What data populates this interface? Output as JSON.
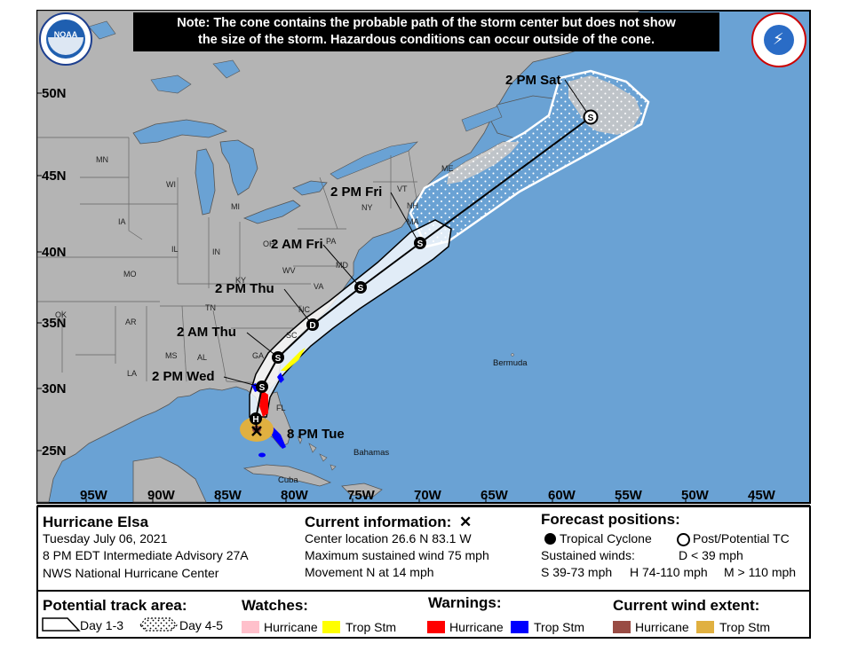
{
  "note": {
    "line1": "Note: The cone contains the probable path of the storm center but does not show",
    "line2": "the size of the storm. Hazardous conditions can occur outside of the cone."
  },
  "logos": {
    "left": "noaa-logo",
    "left_text": "NOAA",
    "right": "national-weather-service-logo",
    "right_text": "NATIONAL WEATHER SERVICE"
  },
  "axes": {
    "lat_labels": [
      "50N",
      "45N",
      "40N",
      "35N",
      "30N",
      "25N"
    ],
    "lon_labels": [
      "95W",
      "90W",
      "85W",
      "80W",
      "75W",
      "70W",
      "65W",
      "60W",
      "55W",
      "50W",
      "45W"
    ]
  },
  "forecast_points": [
    {
      "label": "8 PM Tue",
      "type": "current",
      "lat": 26.6,
      "lon": -83.1
    },
    {
      "label": "",
      "type": "H",
      "lat": 27.7,
      "lon": -83.1
    },
    {
      "label": "2 PM Wed",
      "type": "S",
      "lat": 30.0,
      "lon": -82.8
    },
    {
      "label": "2 AM Thu",
      "type": "S",
      "lat": 32.5,
      "lon": -81.3
    },
    {
      "label": "2 PM Thu",
      "type": "D",
      "lat": 35.0,
      "lon": -78.8
    },
    {
      "label": "2 AM Fri",
      "type": "S",
      "lat": 37.8,
      "lon": -75.2
    },
    {
      "label": "2 PM Fri",
      "type": "S",
      "lat": 41.0,
      "lon": -71.0
    },
    {
      "label": "2 PM Sat",
      "type": "S-post",
      "lat": 48.6,
      "lon": -58.4
    }
  ],
  "state_labels": [
    "MN",
    "WI",
    "MI",
    "ME",
    "VT",
    "NH",
    "NY",
    "MA",
    "PA",
    "IA",
    "IL",
    "IN",
    "OH",
    "MO",
    "KY",
    "WV",
    "VA",
    "MD",
    "OK",
    "AR",
    "TN",
    "NC",
    "SC",
    "MS",
    "AL",
    "GA",
    "LA",
    "FL"
  ],
  "places": {
    "bermuda": "Bermuda",
    "bahamas": "Bahamas",
    "cuba": "Cuba"
  },
  "legend": {
    "storm_name": "Hurricane Elsa",
    "date": "Tuesday July 06, 2021",
    "advisory": "8 PM EDT Intermediate Advisory 27A",
    "center": "NWS National Hurricane Center",
    "current_title": "Current information:",
    "current_symbol": "✕",
    "center_location": "Center location 26.6 N 83.1 W",
    "max_wind": "Maximum sustained wind 75 mph",
    "movement": "Movement N at 14 mph",
    "forecast_title": "Forecast positions:",
    "tropical_cyclone": "Tropical Cyclone",
    "post_tc": "Post/Potential TC",
    "sustained_winds": "Sustained winds:",
    "d_def": "D < 39 mph",
    "s_def": "S 39-73 mph",
    "h_def": "H 74-110 mph",
    "m_def": "M > 110 mph",
    "track_title": "Potential track area:",
    "day13": "Day 1-3",
    "day45": "Day 4-5",
    "watches_title": "Watches:",
    "warnings_title": "Warnings:",
    "wind_title": "Current wind extent:",
    "hurricane": "Hurricane",
    "trop_stm": "Trop Stm"
  },
  "colors": {
    "ocean": "#6aa2d4",
    "land": "#b4b4b4",
    "lakes": "#6aa2d4",
    "cone_day13": "#ffffff",
    "cone_day45_dots": "#ffffff",
    "hurricane_watch": "#ffc0cb",
    "trop_stm_watch": "#ffff00",
    "hurricane_warning": "#ff0000",
    "trop_stm_warning": "#0000ff",
    "hurricane_wind": "#994c44",
    "trop_stm_wind": "#e0b040"
  }
}
